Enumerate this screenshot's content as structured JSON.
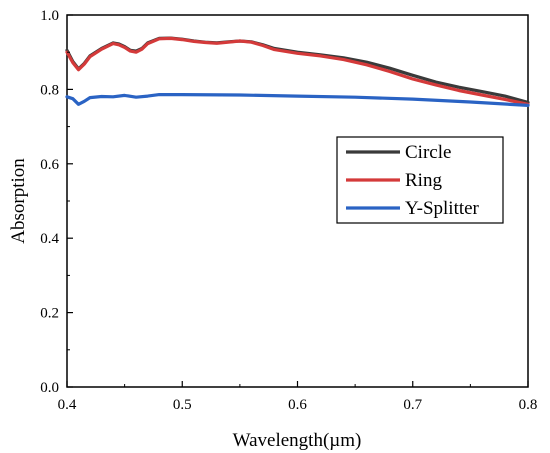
{
  "chart_data": {
    "type": "line",
    "xlabel": "Wavelength(µm)",
    "ylabel": "Absorption",
    "xlim": [
      0.4,
      0.8
    ],
    "ylim": [
      0.0,
      1.0
    ],
    "xticks": [
      "0.4",
      "0.5",
      "0.6",
      "0.7",
      "0.8"
    ],
    "yticks": [
      "0.0",
      "0.2",
      "0.4",
      "0.6",
      "0.8",
      "1.0"
    ],
    "grid": false,
    "legend_position": "right",
    "series": [
      {
        "name": "Circle",
        "color": "#3a3a3a",
        "x": [
          0.4,
          0.405,
          0.41,
          0.415,
          0.42,
          0.43,
          0.44,
          0.445,
          0.45,
          0.455,
          0.46,
          0.465,
          0.47,
          0.48,
          0.49,
          0.5,
          0.51,
          0.52,
          0.53,
          0.54,
          0.55,
          0.56,
          0.57,
          0.58,
          0.6,
          0.62,
          0.64,
          0.66,
          0.68,
          0.7,
          0.72,
          0.74,
          0.76,
          0.78,
          0.8
        ],
        "y": [
          0.905,
          0.875,
          0.855,
          0.87,
          0.89,
          0.91,
          0.925,
          0.922,
          0.915,
          0.905,
          0.903,
          0.91,
          0.925,
          0.937,
          0.938,
          0.935,
          0.93,
          0.927,
          0.925,
          0.928,
          0.93,
          0.928,
          0.92,
          0.91,
          0.9,
          0.893,
          0.885,
          0.873,
          0.857,
          0.838,
          0.82,
          0.806,
          0.794,
          0.782,
          0.765
        ]
      },
      {
        "name": "Ring",
        "color": "#d43a3a",
        "x": [
          0.4,
          0.405,
          0.41,
          0.415,
          0.42,
          0.43,
          0.44,
          0.445,
          0.45,
          0.455,
          0.46,
          0.465,
          0.47,
          0.48,
          0.49,
          0.5,
          0.51,
          0.52,
          0.53,
          0.54,
          0.55,
          0.56,
          0.57,
          0.58,
          0.6,
          0.62,
          0.64,
          0.66,
          0.68,
          0.7,
          0.72,
          0.74,
          0.76,
          0.78,
          0.8
        ],
        "y": [
          0.9,
          0.872,
          0.853,
          0.868,
          0.888,
          0.908,
          0.923,
          0.92,
          0.913,
          0.903,
          0.9,
          0.908,
          0.923,
          0.936,
          0.937,
          0.934,
          0.929,
          0.926,
          0.924,
          0.927,
          0.93,
          0.927,
          0.918,
          0.907,
          0.897,
          0.89,
          0.88,
          0.866,
          0.848,
          0.828,
          0.812,
          0.797,
          0.785,
          0.773,
          0.76
        ]
      },
      {
        "name": "Y-Splitter",
        "color": "#2a63c4",
        "x": [
          0.4,
          0.405,
          0.41,
          0.415,
          0.42,
          0.43,
          0.44,
          0.45,
          0.46,
          0.47,
          0.48,
          0.5,
          0.55,
          0.6,
          0.65,
          0.7,
          0.75,
          0.8
        ],
        "y": [
          0.78,
          0.775,
          0.76,
          0.768,
          0.778,
          0.781,
          0.78,
          0.784,
          0.779,
          0.782,
          0.786,
          0.786,
          0.785,
          0.782,
          0.779,
          0.774,
          0.766,
          0.757
        ]
      }
    ]
  }
}
